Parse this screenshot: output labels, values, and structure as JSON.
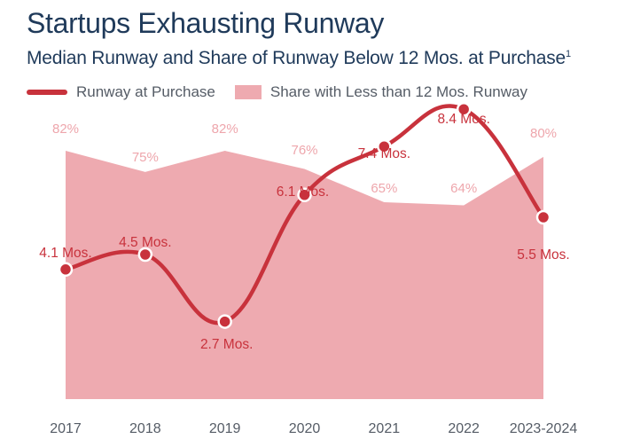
{
  "title": "Startups Exhausting Runway",
  "subtitle": "Median Runway and Share of Runway Below 12 Mos. at Purchase",
  "subtitle_sup": "1",
  "legend": {
    "line_label": "Runway at Purchase",
    "area_label": "Share with Less than 12 Mos. Runway"
  },
  "colors": {
    "line": "#c8323c",
    "area": "#eeaab0",
    "area_label": "#eea6ac",
    "axis_text": "#555c66",
    "title": "#1f3a5a"
  },
  "chart_data": {
    "type": "line",
    "categories": [
      "2017",
      "2018",
      "2019",
      "2020",
      "2021",
      "2022",
      "2023-2024"
    ],
    "series": [
      {
        "name": "Runway at Purchase",
        "type": "line",
        "values": [
          4.1,
          4.5,
          2.7,
          6.1,
          7.4,
          8.4,
          5.5
        ],
        "labels": [
          "4.1 Mos.",
          "4.5 Mos.",
          "2.7 Mos.",
          "6.1 Mos.",
          "7.4 Mos.",
          "8.4 Mos.",
          "5.5 Mos."
        ]
      },
      {
        "name": "Share with Less than 12 Mos. Runway",
        "type": "area",
        "values": [
          82,
          75,
          82,
          76,
          65,
          64,
          80
        ],
        "labels": [
          "82%",
          "75%",
          "82%",
          "76%",
          "65%",
          "64%",
          "80%"
        ]
      }
    ],
    "xlabel": "",
    "ylabel": "",
    "grid": false
  }
}
